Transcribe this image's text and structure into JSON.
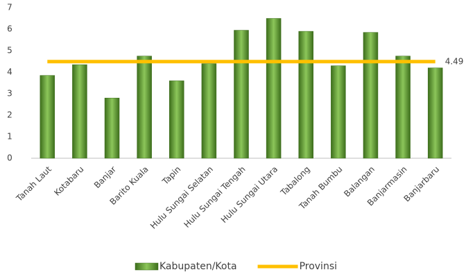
{
  "chart_data": {
    "type": "bar",
    "categories": [
      "Tanah Laut",
      "Kotabaru",
      "Banjar",
      "Barito Kuala",
      "Tapin",
      "Hulu Sungai Selatan",
      "Hulu Sungai Tengah",
      "Hulu Sungai Utara",
      "Tabalong",
      "Tanah Bumbu",
      "Balangan",
      "Banjarmasin",
      "Banjarbaru"
    ],
    "series": [
      {
        "name": "Kabupaten/Kota",
        "type": "bar",
        "color": "#5a9a2e",
        "values": [
          3.85,
          4.35,
          2.8,
          4.75,
          3.6,
          4.4,
          5.95,
          6.5,
          5.9,
          4.3,
          5.85,
          4.75,
          4.2
        ]
      },
      {
        "name": "Provinsi",
        "type": "line",
        "color": "#ffc000",
        "values": [
          4.49,
          4.49,
          4.49,
          4.49,
          4.49,
          4.49,
          4.49,
          4.49,
          4.49,
          4.49,
          4.49,
          4.49,
          4.49
        ]
      }
    ],
    "ylim": [
      0,
      7
    ],
    "yticks": [
      0,
      1,
      2,
      3,
      4,
      5,
      6,
      7
    ],
    "grid": false,
    "legend": "bottom"
  }
}
